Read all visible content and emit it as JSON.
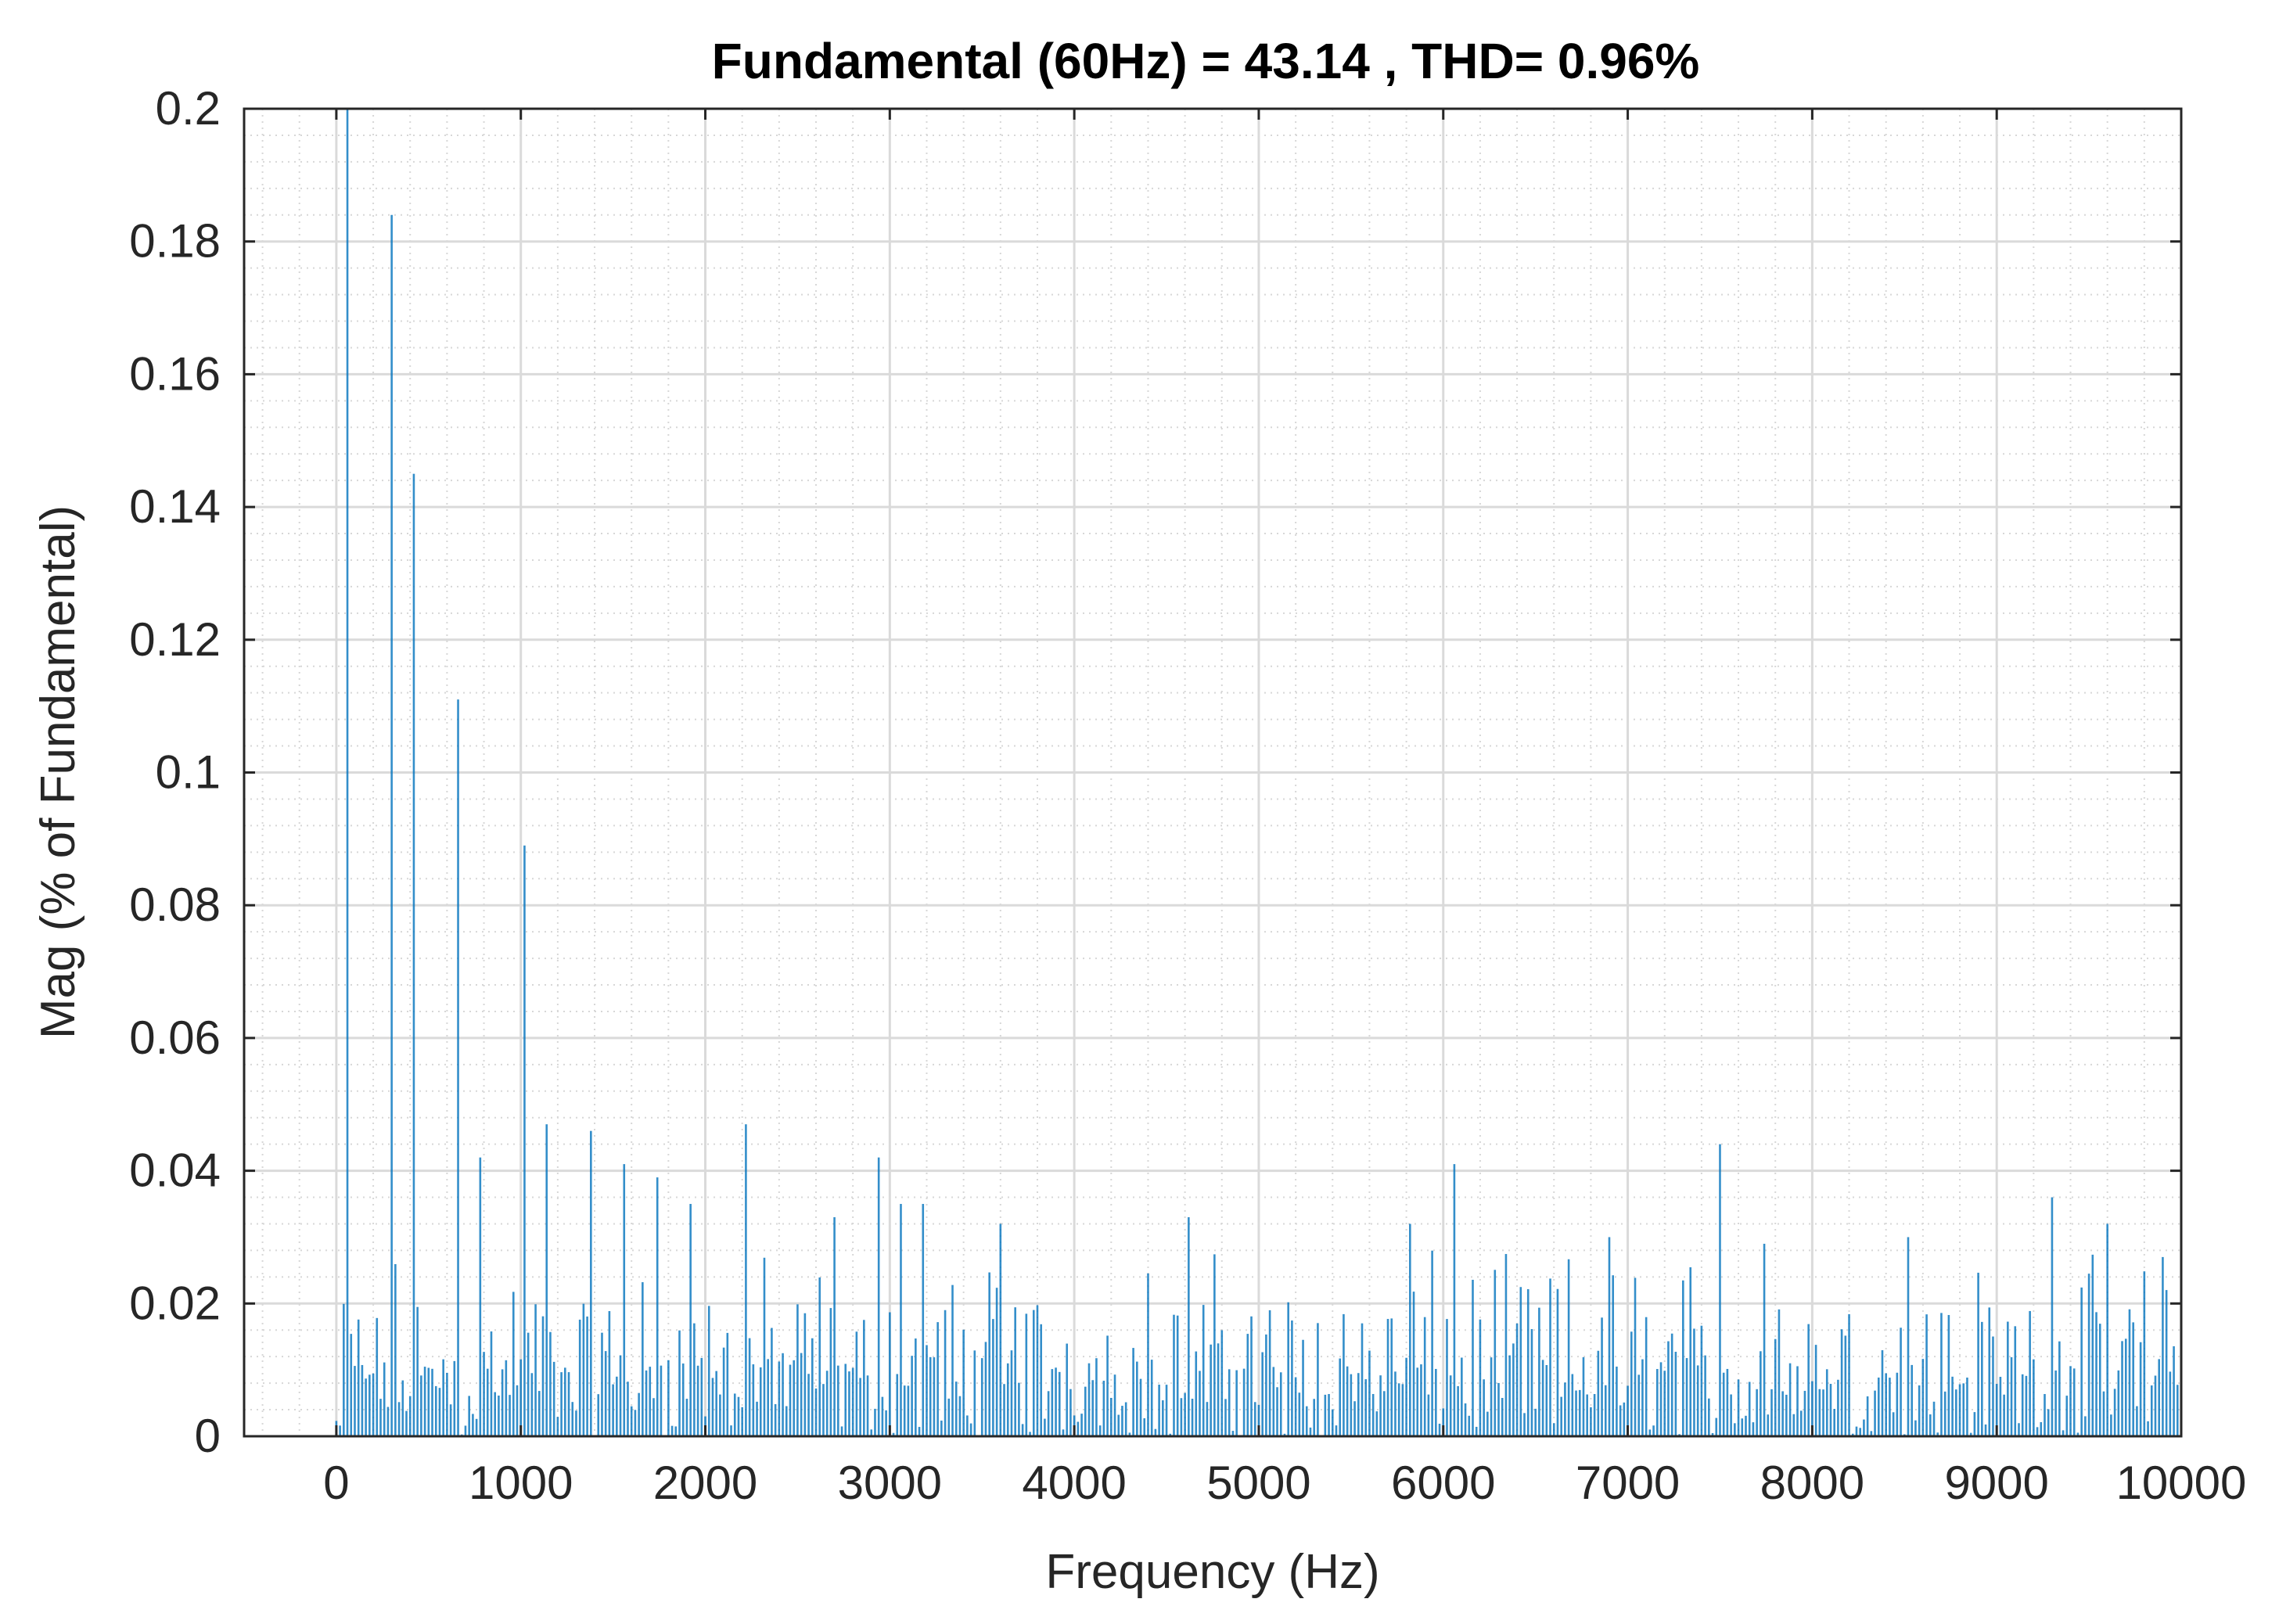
{
  "chart_data": {
    "type": "bar",
    "title": "Fundamental (60Hz) = 43.14 , THD= 0.96%",
    "xlabel": "Frequency (Hz)",
    "ylabel": "Mag (% of Fundamental)",
    "xlim": [
      -500,
      10000
    ],
    "ylim": [
      0,
      0.2
    ],
    "x_ticks": [
      0,
      1000,
      2000,
      3000,
      4000,
      5000,
      6000,
      7000,
      8000,
      9000,
      10000
    ],
    "x_tick_labels": [
      "0",
      "1000",
      "2000",
      "3000",
      "4000",
      "5000",
      "6000",
      "7000",
      "8000",
      "9000",
      "10000"
    ],
    "y_ticks": [
      0,
      0.02,
      0.04,
      0.06,
      0.08,
      0.1,
      0.12,
      0.14,
      0.16,
      0.18,
      0.2
    ],
    "y_tick_labels": [
      "0",
      "0.02",
      "0.04",
      "0.06",
      "0.08",
      "0.1",
      "0.12",
      "0.14",
      "0.16",
      "0.18",
      "0.2"
    ],
    "grid": true,
    "minor_grid": true,
    "bar_color": "#0072BD",
    "bar_spacing_hz": 20,
    "peaks": [
      {
        "x": 60,
        "y": 0.2
      },
      {
        "x": 300,
        "y": 0.184
      },
      {
        "x": 420,
        "y": 0.145
      },
      {
        "x": 660,
        "y": 0.111
      },
      {
        "x": 780,
        "y": 0.042
      },
      {
        "x": 1020,
        "y": 0.089
      },
      {
        "x": 1140,
        "y": 0.047
      },
      {
        "x": 1380,
        "y": 0.046
      },
      {
        "x": 1560,
        "y": 0.041
      },
      {
        "x": 1740,
        "y": 0.039
      },
      {
        "x": 1920,
        "y": 0.035
      },
      {
        "x": 2220,
        "y": 0.047
      },
      {
        "x": 2700,
        "y": 0.033
      },
      {
        "x": 2940,
        "y": 0.042
      },
      {
        "x": 3060,
        "y": 0.035
      },
      {
        "x": 3180,
        "y": 0.035
      },
      {
        "x": 3600,
        "y": 0.032
      },
      {
        "x": 4620,
        "y": 0.033
      },
      {
        "x": 5820,
        "y": 0.032
      },
      {
        "x": 6060,
        "y": 0.041
      },
      {
        "x": 6900,
        "y": 0.03
      },
      {
        "x": 7500,
        "y": 0.044
      },
      {
        "x": 7740,
        "y": 0.029
      },
      {
        "x": 8520,
        "y": 0.03
      },
      {
        "x": 9300,
        "y": 0.036
      },
      {
        "x": 9600,
        "y": 0.032
      },
      {
        "x": 9900,
        "y": 0.027
      }
    ],
    "noise_floor_max": 0.028,
    "noise_range_hz": [
      0,
      10000
    ]
  }
}
